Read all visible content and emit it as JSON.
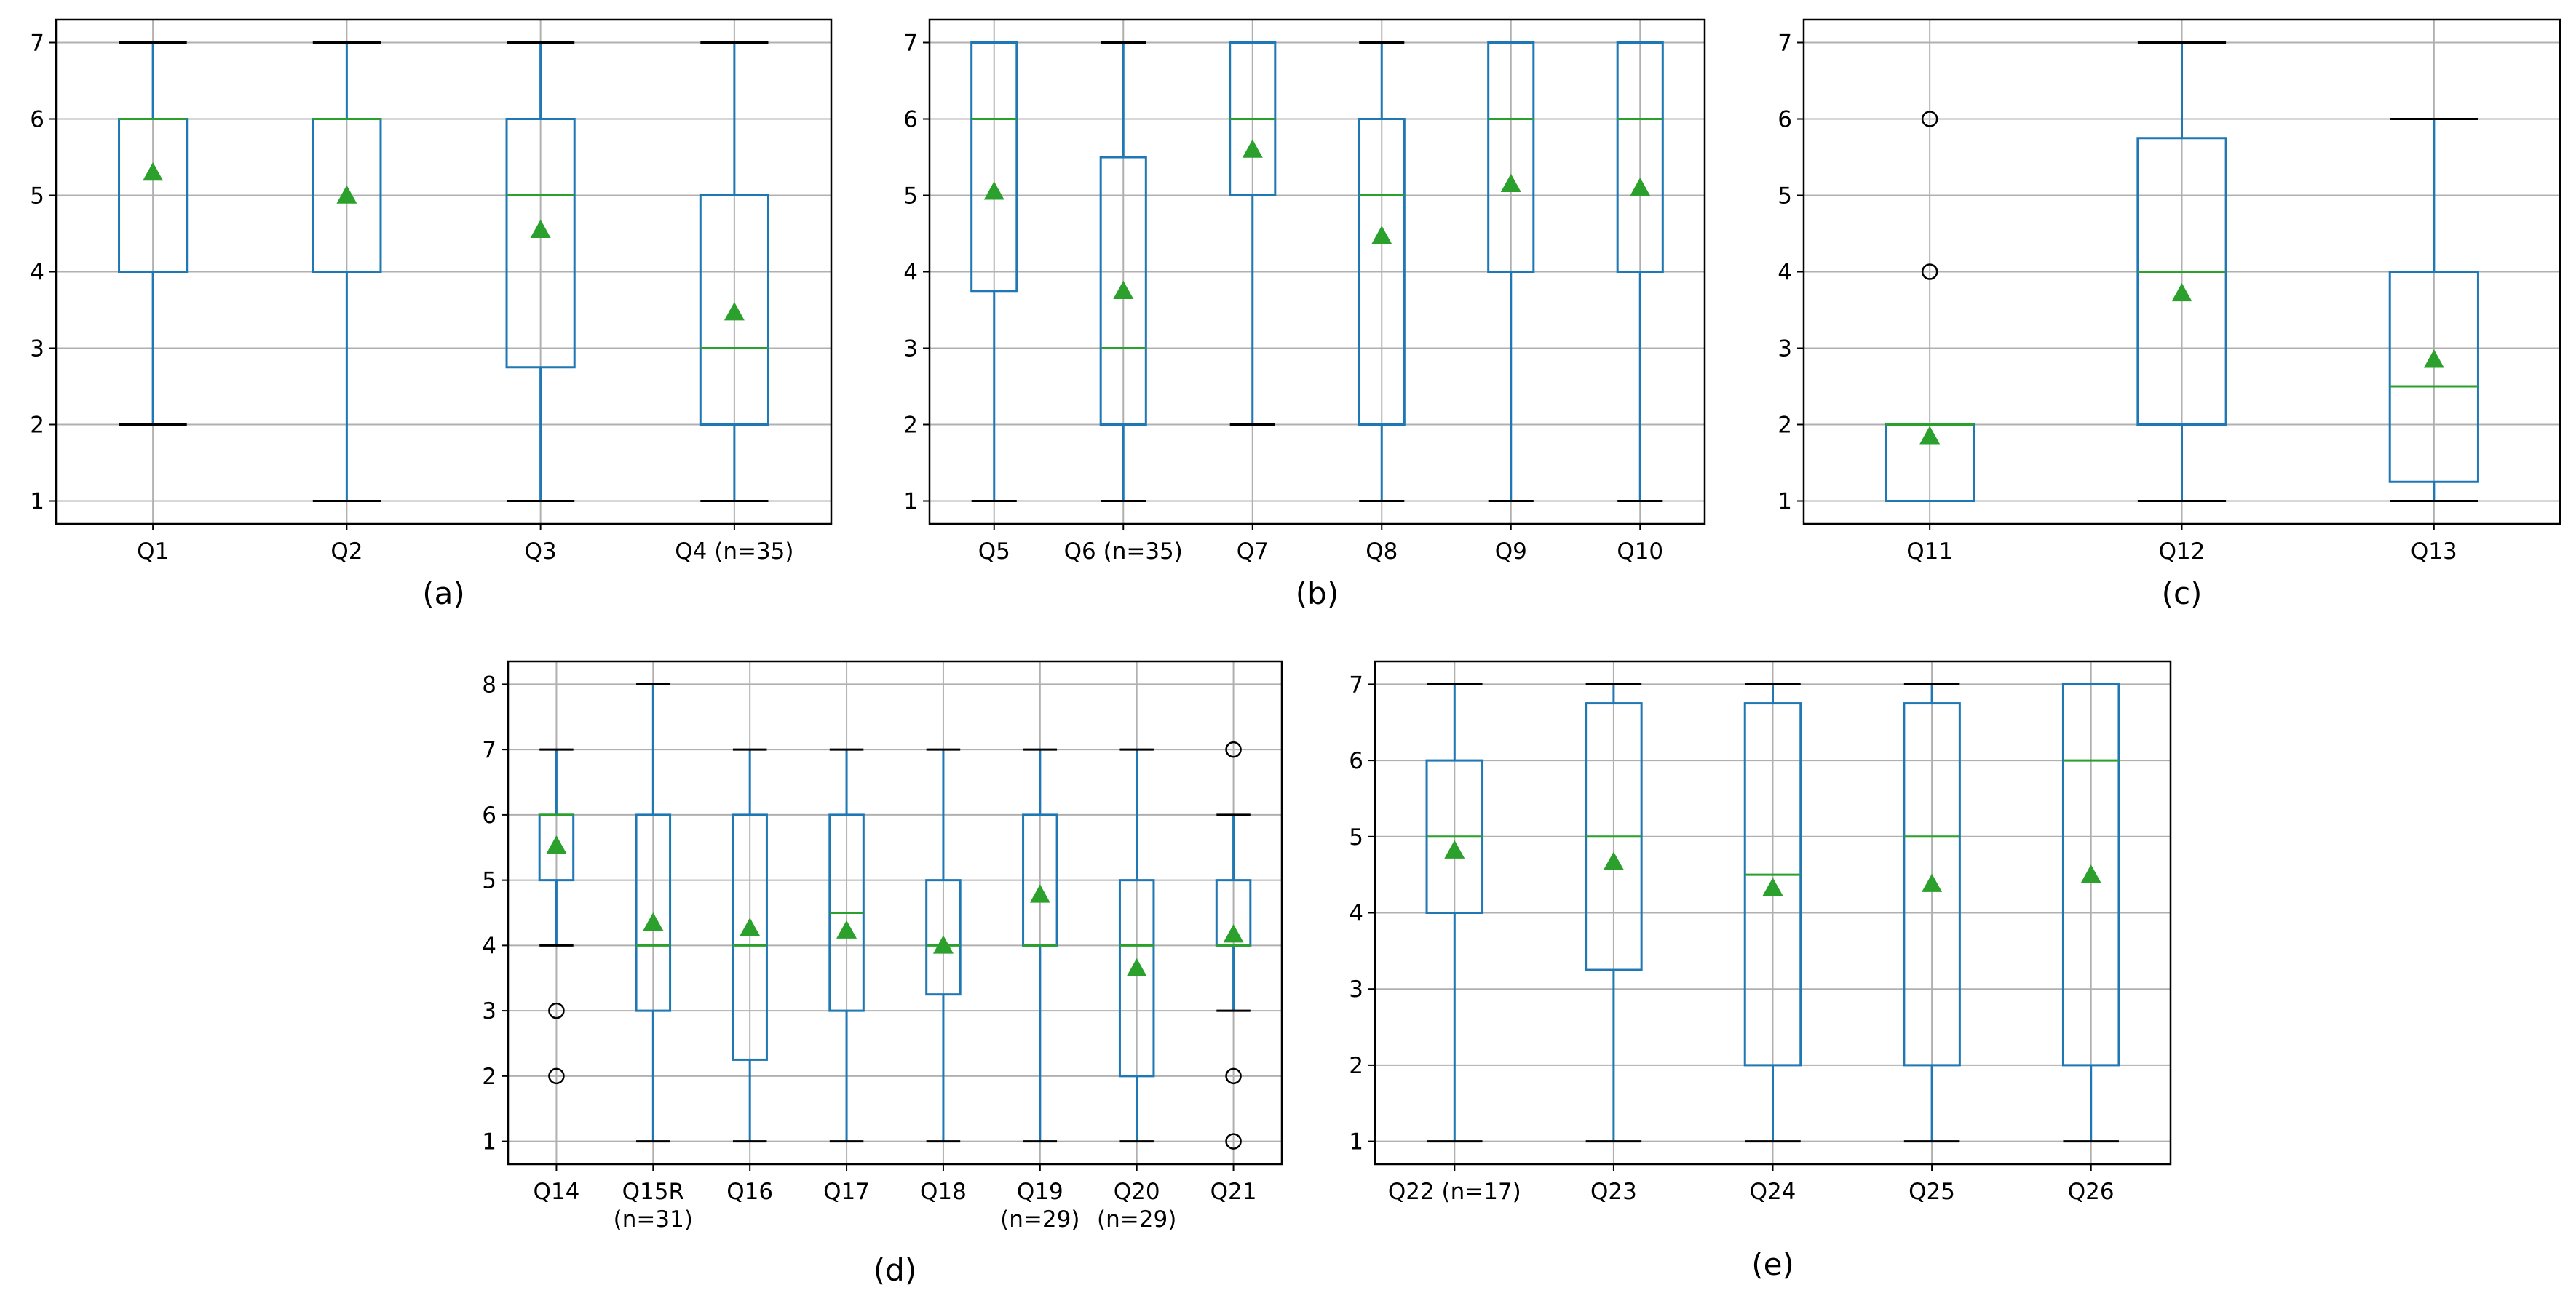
{
  "figure": {
    "panel_count": 5
  },
  "colors": {
    "box": "#1f77b4",
    "median": "#2ca02c",
    "mean_marker": "#2ca02c",
    "grid": "#b0b0b0",
    "whisker_cap": "#000000",
    "frame": "#000000",
    "outlier_edge": "#000000"
  },
  "chart_data": [
    {
      "id": "a",
      "caption": "(a)",
      "type": "box",
      "ylim": [
        0.7,
        7.3
      ],
      "yticks": [
        1,
        2,
        3,
        4,
        5,
        6,
        7
      ],
      "grid": true,
      "legend": null,
      "boxes": [
        {
          "label": [
            "Q1"
          ],
          "whislo": 2,
          "q1": 4,
          "med": 6,
          "q3": 6,
          "whishi": 7,
          "mean": 5.3,
          "fliers": []
        },
        {
          "label": [
            "Q2"
          ],
          "whislo": 1,
          "q1": 4,
          "med": 6,
          "q3": 6,
          "whishi": 7,
          "mean": 5.0,
          "fliers": []
        },
        {
          "label": [
            "Q3"
          ],
          "whislo": 1,
          "q1": 2.75,
          "med": 5,
          "q3": 6,
          "whishi": 7,
          "mean": 4.55,
          "fliers": []
        },
        {
          "label": [
            "Q4 (n=35)"
          ],
          "whislo": 1,
          "q1": 2,
          "med": 3,
          "q3": 5,
          "whishi": 7,
          "mean": 3.47,
          "fliers": []
        }
      ]
    },
    {
      "id": "b",
      "caption": "(b)",
      "type": "box",
      "ylim": [
        0.7,
        7.3
      ],
      "yticks": [
        1,
        2,
        3,
        4,
        5,
        6,
        7
      ],
      "grid": true,
      "legend": null,
      "boxes": [
        {
          "label": [
            "Q5"
          ],
          "whislo": 1,
          "q1": 3.75,
          "med": 6,
          "q3": 7,
          "whishi": 7,
          "mean": 5.05,
          "fliers": []
        },
        {
          "label": [
            "Q6 (n=35)"
          ],
          "whislo": 1,
          "q1": 2,
          "med": 3,
          "q3": 5.5,
          "whishi": 7,
          "mean": 3.75,
          "fliers": []
        },
        {
          "label": [
            "Q7"
          ],
          "whislo": 2,
          "q1": 5,
          "med": 6,
          "q3": 7,
          "whishi": 7,
          "mean": 5.6,
          "fliers": []
        },
        {
          "label": [
            "Q8"
          ],
          "whislo": 1,
          "q1": 2,
          "med": 5,
          "q3": 6,
          "whishi": 7,
          "mean": 4.47,
          "fliers": []
        },
        {
          "label": [
            "Q9"
          ],
          "whislo": 1,
          "q1": 4,
          "med": 6,
          "q3": 7,
          "whishi": 7,
          "mean": 5.15,
          "fliers": []
        },
        {
          "label": [
            "Q10"
          ],
          "whislo": 1,
          "q1": 4,
          "med": 6,
          "q3": 7,
          "whishi": 7,
          "mean": 5.1,
          "fliers": []
        }
      ]
    },
    {
      "id": "c",
      "caption": "(c)",
      "type": "box",
      "ylim": [
        0.7,
        7.3
      ],
      "yticks": [
        1,
        2,
        3,
        4,
        5,
        6,
        7
      ],
      "grid": true,
      "legend": null,
      "boxes": [
        {
          "label": [
            "Q11"
          ],
          "whislo": 1,
          "q1": 1,
          "med": 2,
          "q3": 2,
          "whishi": 2,
          "mean": 1.85,
          "fliers": [
            4,
            6
          ]
        },
        {
          "label": [
            "Q12"
          ],
          "whislo": 1,
          "q1": 2,
          "med": 4,
          "q3": 5.75,
          "whishi": 7,
          "mean": 3.72,
          "fliers": []
        },
        {
          "label": [
            "Q13"
          ],
          "whislo": 1,
          "q1": 1.25,
          "med": 2.5,
          "q3": 4,
          "whishi": 6,
          "mean": 2.85,
          "fliers": []
        }
      ]
    },
    {
      "id": "d",
      "caption": "(d)",
      "type": "box",
      "ylim": [
        0.65,
        8.35
      ],
      "yticks": [
        1,
        2,
        3,
        4,
        5,
        6,
        7,
        8
      ],
      "grid": true,
      "legend": null,
      "boxes": [
        {
          "label": [
            "Q14"
          ],
          "whislo": 4,
          "q1": 5,
          "med": 6,
          "q3": 6,
          "whishi": 7,
          "mean": 5.53,
          "fliers": [
            2,
            3
          ]
        },
        {
          "label": [
            "Q15R",
            "(n=31)"
          ],
          "whislo": 1,
          "q1": 3,
          "med": 4,
          "q3": 6,
          "whishi": 8,
          "mean": 4.35,
          "fliers": []
        },
        {
          "label": [
            "Q16"
          ],
          "whislo": 1,
          "q1": 2.25,
          "med": 4,
          "q3": 6,
          "whishi": 7,
          "mean": 4.27,
          "fliers": []
        },
        {
          "label": [
            "Q17"
          ],
          "whislo": 1,
          "q1": 3,
          "med": 4.5,
          "q3": 6,
          "whishi": 7,
          "mean": 4.23,
          "fliers": []
        },
        {
          "label": [
            "Q18"
          ],
          "whislo": 1,
          "q1": 3.25,
          "med": 4,
          "q3": 5,
          "whishi": 7,
          "mean": 4.0,
          "fliers": []
        },
        {
          "label": [
            "Q19",
            "(n=29)"
          ],
          "whislo": 1,
          "q1": 4,
          "med": 4,
          "q3": 6,
          "whishi": 7,
          "mean": 4.78,
          "fliers": []
        },
        {
          "label": [
            "Q20",
            "(n=29)"
          ],
          "whislo": 1,
          "q1": 2,
          "med": 4,
          "q3": 5,
          "whishi": 7,
          "mean": 3.65,
          "fliers": []
        },
        {
          "label": [
            "Q21"
          ],
          "whislo": 3,
          "q1": 4,
          "med": 4,
          "q3": 5,
          "whishi": 6,
          "mean": 4.17,
          "fliers": [
            1,
            2,
            7
          ]
        }
      ]
    },
    {
      "id": "e",
      "caption": "(e)",
      "type": "box",
      "ylim": [
        0.7,
        7.3
      ],
      "yticks": [
        1,
        2,
        3,
        4,
        5,
        6,
        7
      ],
      "grid": true,
      "legend": null,
      "boxes": [
        {
          "label": [
            "Q22 (n=17)"
          ],
          "whislo": 1,
          "q1": 4,
          "med": 5,
          "q3": 6,
          "whishi": 7,
          "mean": 4.82,
          "fliers": []
        },
        {
          "label": [
            "Q23"
          ],
          "whislo": 1,
          "q1": 3.25,
          "med": 5,
          "q3": 6.75,
          "whishi": 7,
          "mean": 4.67,
          "fliers": []
        },
        {
          "label": [
            "Q24"
          ],
          "whislo": 1,
          "q1": 2,
          "med": 4.5,
          "q3": 6.75,
          "whishi": 7,
          "mean": 4.33,
          "fliers": []
        },
        {
          "label": [
            "Q25"
          ],
          "whislo": 1,
          "q1": 2,
          "med": 5,
          "q3": 6.75,
          "whishi": 7,
          "mean": 4.38,
          "fliers": []
        },
        {
          "label": [
            "Q26"
          ],
          "whislo": 1,
          "q1": 2,
          "med": 6,
          "q3": 7,
          "whishi": 7,
          "mean": 4.5,
          "fliers": []
        }
      ]
    }
  ]
}
